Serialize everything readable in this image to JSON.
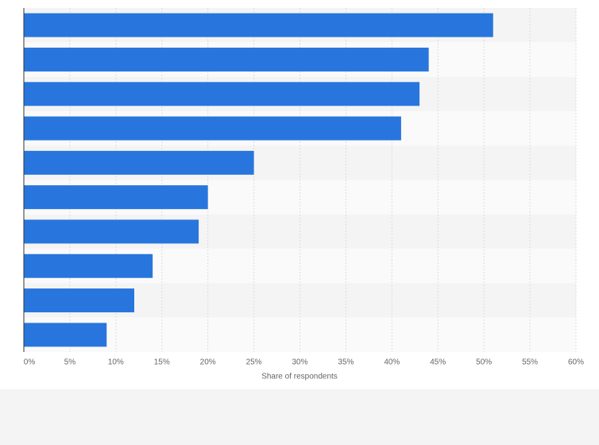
{
  "chart_data": {
    "type": "bar",
    "orientation": "horizontal",
    "categories": [
      null,
      null,
      null,
      null,
      null,
      null,
      null,
      null,
      null,
      null
    ],
    "values": [
      51,
      44,
      43,
      41,
      25,
      20,
      19,
      14,
      12,
      9
    ],
    "color": "#2876dd",
    "xlabel": "Share of respondents",
    "xlim": [
      0,
      60
    ],
    "xticks": [
      {
        "value": 0,
        "label": "0%"
      },
      {
        "value": 5,
        "label": "5%"
      },
      {
        "value": 10,
        "label": "10%"
      },
      {
        "value": 15,
        "label": "15%"
      },
      {
        "value": 20,
        "label": "20%"
      },
      {
        "value": 25,
        "label": "25%"
      },
      {
        "value": 30,
        "label": "30%"
      },
      {
        "value": 35,
        "label": "35%"
      },
      {
        "value": 40,
        "label": "40%"
      },
      {
        "value": 45,
        "label": "45%"
      },
      {
        "value": 50,
        "label": "50%"
      },
      {
        "value": 55,
        "label": "55%"
      },
      {
        "value": 60,
        "label": "60%"
      }
    ],
    "grid": true
  }
}
